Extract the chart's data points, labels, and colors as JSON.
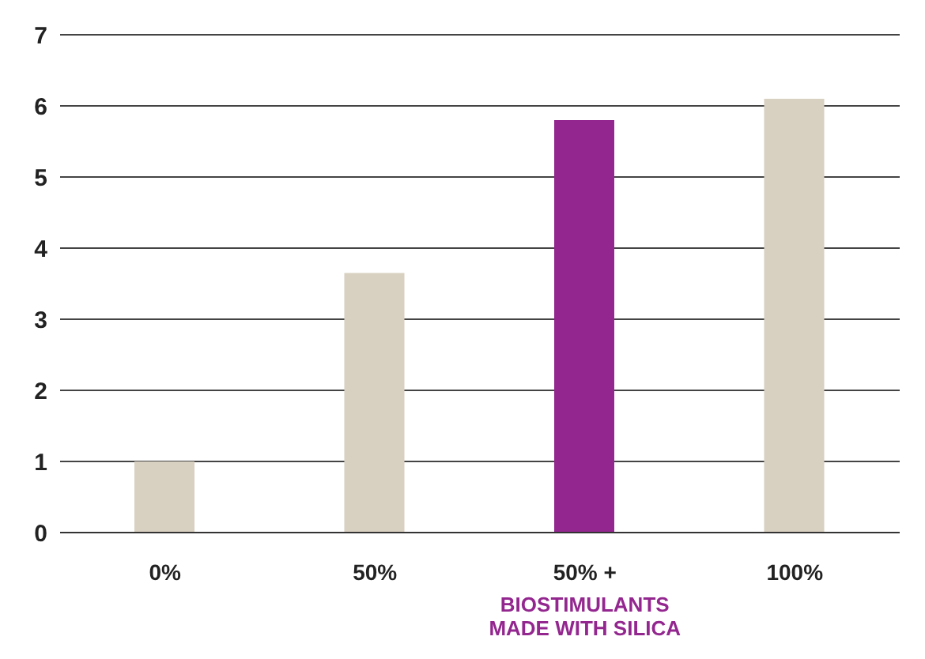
{
  "chart_data": {
    "type": "bar",
    "categories": [
      "0%",
      "50%",
      "50% +\nBIOSTIMULANTS\nMADE WITH SILICA",
      "100%"
    ],
    "values": [
      1.0,
      3.65,
      5.8,
      6.1
    ],
    "colors": [
      "#d8d0c0",
      "#d8d0c0",
      "#93278f",
      "#d8d0c0"
    ],
    "ylim": [
      0,
      7
    ],
    "yticks": [
      0,
      1,
      2,
      3,
      4,
      5,
      6,
      7
    ],
    "grid": "y"
  }
}
